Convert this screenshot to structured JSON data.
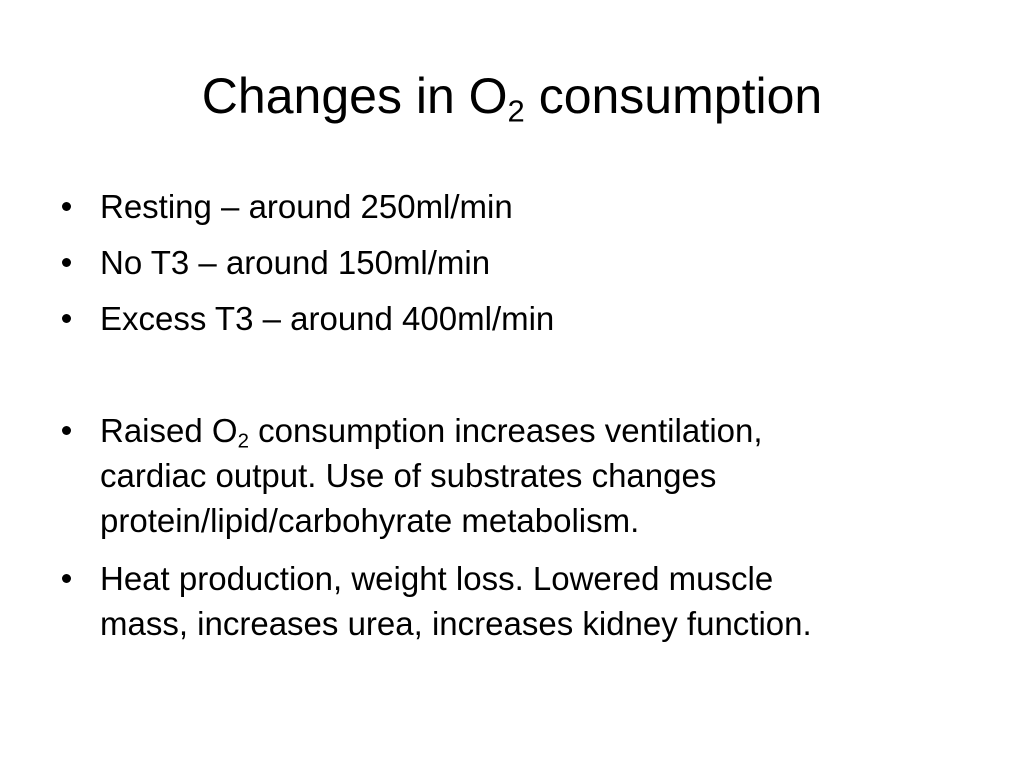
{
  "slide": {
    "title": {
      "prefix": "Changes in O",
      "subscript": "2",
      "suffix": " consumption"
    },
    "bullets": [
      {
        "text": "Resting – around 250ml/min"
      },
      {
        "text": "No T3 – around 150ml/min"
      },
      {
        "text": "Excess T3 – around 400ml/min"
      },
      {
        "prefix": "Raised O",
        "subscript": "2",
        "line1_rest": " consumption increases ventilation,",
        "line2": "cardiac output. Use of substrates changes",
        "line3": "protein/lipid/carbohyrate metabolism."
      },
      {
        "line1": "Heat production, weight loss. Lowered muscle",
        "line2": "mass, increases urea, increases kidney function."
      }
    ]
  }
}
